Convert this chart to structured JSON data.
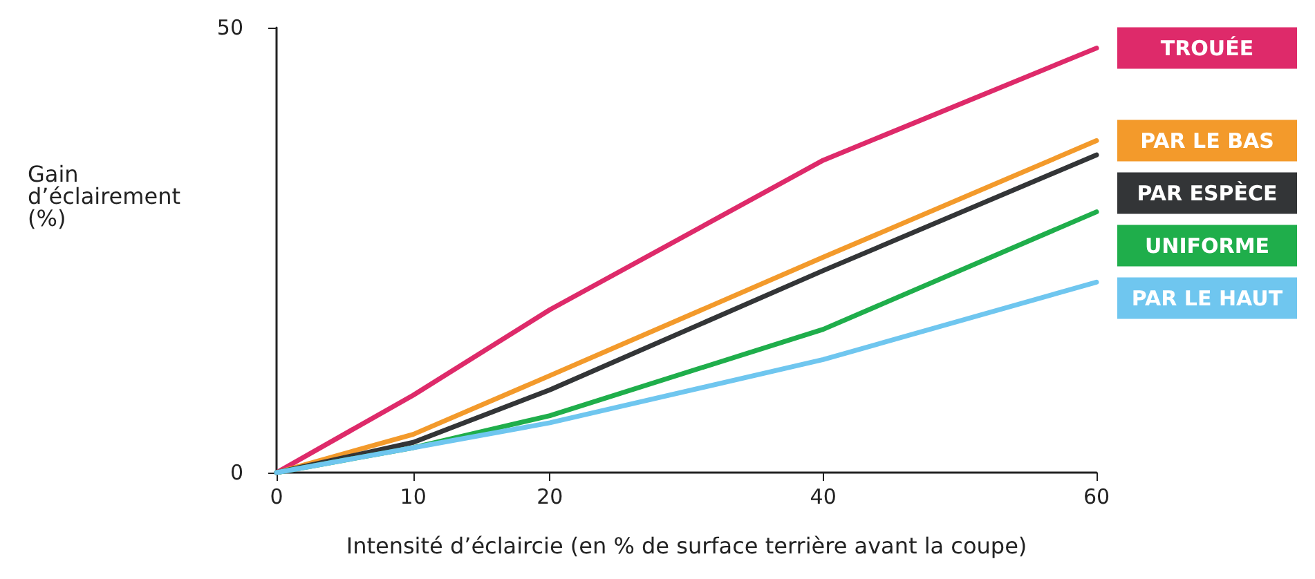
{
  "chart_data": {
    "type": "line",
    "xlabel": "Intensité d’éclaircie (en % de surface terrière avant la coupe)",
    "ylabel": "Gain\nd’éclairement\n(%)",
    "x": [
      0,
      10,
      20,
      40,
      60
    ],
    "xlim": [
      0,
      60
    ],
    "xticks": [
      0,
      10,
      20,
      40,
      60
    ],
    "ylim": [
      0,
      50
    ],
    "yticks": [
      0,
      50
    ],
    "grid": false,
    "legend": "right",
    "marker": "none",
    "line_style": "solid",
    "series": [
      {
        "name": "TROUÉE",
        "color": "#de2a6a",
        "values": [
          0,
          8.7,
          18.3,
          35.1,
          47.7
        ]
      },
      {
        "name": "PAR LE BAS",
        "color": "#f39a2b",
        "values": [
          0,
          4.3,
          10.9,
          24.2,
          37.3
        ]
      },
      {
        "name": "PAR ESPÈCE",
        "color": "#333537",
        "values": [
          0,
          3.4,
          9.3,
          22.7,
          35.7
        ]
      },
      {
        "name": "UNIFORME",
        "color": "#1fae4b",
        "values": [
          0,
          2.8,
          6.4,
          16.1,
          29.3
        ]
      },
      {
        "name": "PAR LE HAUT",
        "color": "#6fc6ef",
        "values": [
          0,
          2.8,
          5.6,
          12.7,
          21.4
        ]
      }
    ]
  }
}
